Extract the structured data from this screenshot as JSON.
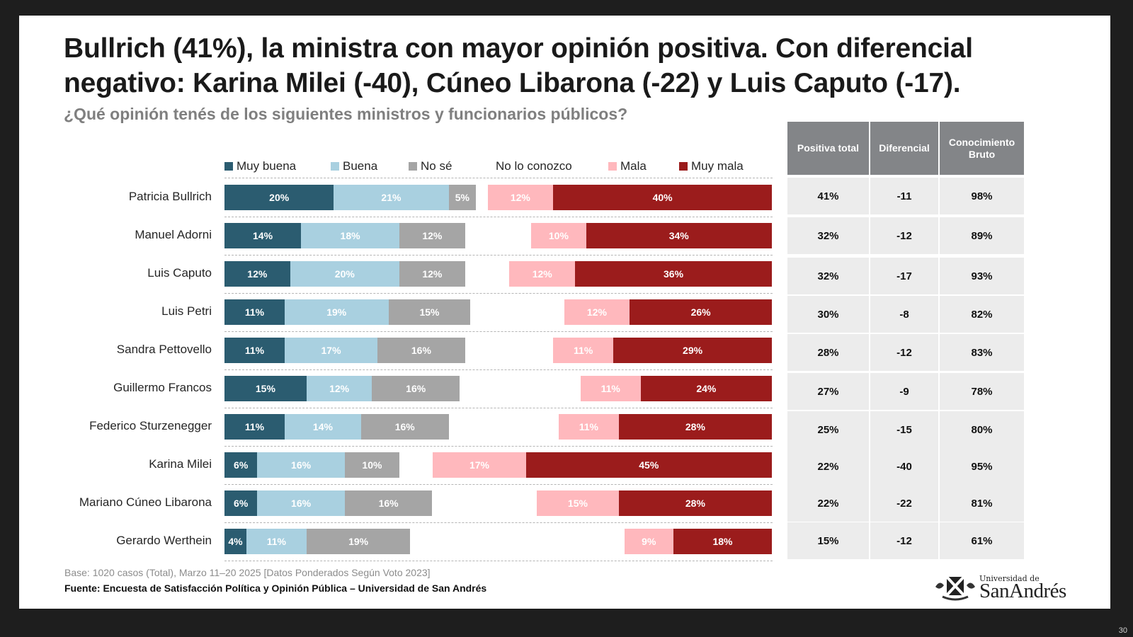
{
  "title": "Bullrich (41%), la ministra con mayor opinión positiva. Con diferencial negativo: Karina Milei (-40), Cúneo Libarona (-22) y Luis Caputo (-17).",
  "subtitle": "¿Qué opinión tenés de los siguientes ministros y funcionarios públicos?",
  "colors": {
    "muy_buena": "#2b5c70",
    "buena": "#a9d0e0",
    "no_se": "#a5a5a5",
    "no_lo_conozco": "#ffffff",
    "mala": "#ffb8bd",
    "muy_mala": "#9b1c1c",
    "table_header": "#838588",
    "table_cell": "#ececec"
  },
  "legend": [
    {
      "key": "muy_buena",
      "label": "Muy buena",
      "swatch": true
    },
    {
      "key": "buena",
      "label": "Buena",
      "swatch": true
    },
    {
      "key": "no_se",
      "label": "No sé",
      "swatch": true
    },
    {
      "key": "no_lo_conozco",
      "label": "No lo conozco",
      "swatch": false
    },
    {
      "key": "mala",
      "label": "Mala",
      "swatch": true
    },
    {
      "key": "muy_mala",
      "label": "Muy mala",
      "swatch": true
    }
  ],
  "chart_data": {
    "type": "bar",
    "orientation": "horizontal",
    "stacked": true,
    "title": "¿Qué opinión tenés de los siguientes ministros y funcionarios públicos?",
    "unit": "%",
    "categories": [
      "Patricia Bullrich",
      "Manuel Adorni",
      "Luis Caputo",
      "Luis Petri",
      "Sandra Pettovello",
      "Guillermo Francos",
      "Federico Sturzenegger",
      "Karina Milei",
      "Mariano Cúneo Libarona",
      "Gerardo Werthein"
    ],
    "series": [
      {
        "key": "muy_buena",
        "name": "Muy buena",
        "values": [
          20,
          14,
          12,
          11,
          11,
          15,
          11,
          6,
          6,
          4
        ],
        "align": "left"
      },
      {
        "key": "buena",
        "name": "Buena",
        "values": [
          21,
          18,
          20,
          19,
          17,
          12,
          14,
          16,
          16,
          11
        ],
        "align": "left"
      },
      {
        "key": "no_se",
        "name": "No sé",
        "values": [
          5,
          12,
          12,
          15,
          16,
          16,
          16,
          10,
          16,
          19
        ],
        "align": "left"
      },
      {
        "key": "mala",
        "name": "Mala",
        "values": [
          12,
          10,
          12,
          12,
          11,
          11,
          11,
          17,
          15,
          9
        ],
        "align": "right"
      },
      {
        "key": "muy_mala",
        "name": "Muy mala",
        "values": [
          40,
          34,
          36,
          26,
          29,
          24,
          28,
          45,
          28,
          18
        ],
        "align": "right"
      }
    ],
    "legend_position": "top",
    "grid": false
  },
  "table": {
    "headers": [
      "Positiva total",
      "Diferencial",
      "Conocimiento Bruto"
    ],
    "rows": [
      [
        "41%",
        "-11",
        "98%"
      ],
      [
        "32%",
        "-12",
        "89%"
      ],
      [
        "32%",
        "-17",
        "93%"
      ],
      [
        "30%",
        "-8",
        "82%"
      ],
      [
        "28%",
        "-12",
        "83%"
      ],
      [
        "27%",
        "-9",
        "78%"
      ],
      [
        "25%",
        "-15",
        "80%"
      ],
      [
        "22%",
        "-40",
        "95%"
      ],
      [
        "22%",
        "-22",
        "81%"
      ],
      [
        "15%",
        "-12",
        "61%"
      ]
    ]
  },
  "footer": {
    "base": "Base: 1020 casos (Total), Marzo 11–20 2025 [Datos Ponderados Según Voto 2023]",
    "source": "Fuente: Encuesta de Satisfacción Política y Opinión Pública – Universidad de San Andrés"
  },
  "logo": {
    "small": "Universidad de",
    "big": "SanAndrés"
  },
  "page_number": "30"
}
